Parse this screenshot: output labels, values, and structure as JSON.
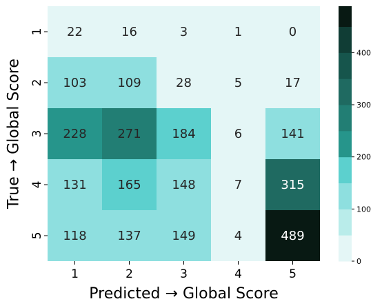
{
  "chart_data": {
    "type": "heatmap",
    "xlabel": "Predicted → Global Score",
    "ylabel": "True → Global Score",
    "x_categories": [
      "1",
      "2",
      "3",
      "4",
      "5"
    ],
    "y_categories": [
      "1",
      "2",
      "3",
      "4",
      "5"
    ],
    "values": [
      [
        22,
        16,
        3,
        1,
        0
      ],
      [
        103,
        109,
        28,
        5,
        17
      ],
      [
        228,
        271,
        184,
        6,
        141
      ],
      [
        131,
        165,
        148,
        7,
        315
      ],
      [
        118,
        137,
        149,
        4,
        489
      ]
    ],
    "colorbar": {
      "range": [
        0,
        489
      ],
      "ticks": [
        "0",
        "100",
        "200",
        "300",
        "400"
      ],
      "tick_values": [
        0,
        100,
        200,
        300,
        400
      ],
      "bin_width": 50,
      "colors": [
        "#e4f6f6",
        "#b9ecea",
        "#8edfdf",
        "#5cd0ce",
        "#26958b",
        "#227e74",
        "#1f6a61",
        "#16554c",
        "#103d35",
        "#081913"
      ]
    },
    "dark_text_color": "#262626",
    "light_text_color": "#ffffff"
  }
}
